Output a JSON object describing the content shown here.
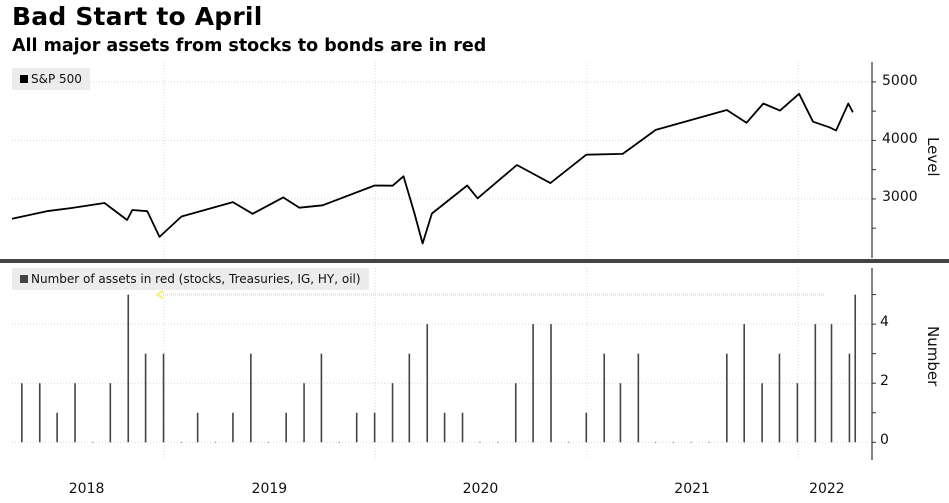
{
  "title": "Bad Start to April",
  "subtitle": "All major assets from stocks to bonds are in red",
  "chart_data": [
    {
      "type": "line",
      "legend": "S&P 500",
      "legend_placement": "top-left",
      "ylabel": "Level",
      "yticks": [
        3000,
        4000,
        5000
      ],
      "ylim": [
        1990,
        5340
      ],
      "xlim": [
        "2018-04-13",
        "2022-05-09"
      ],
      "grid": true,
      "color": "#000000",
      "series": [
        {
          "x": [
            "2018-04-13",
            "2018-06-12",
            "2018-07-25",
            "2018-09-20",
            "2018-10-29",
            "2018-11-07",
            "2018-12-03",
            "2018-12-24",
            "2019-01-31",
            "2019-04-30",
            "2019-06-03",
            "2019-07-26",
            "2019-08-23",
            "2019-10-02",
            "2019-12-31",
            "2020-01-31",
            "2020-02-19",
            "2020-03-09",
            "2020-03-23",
            "2020-04-08",
            "2020-06-08",
            "2020-06-26",
            "2020-09-02",
            "2020-10-30",
            "2020-12-31",
            "2021-03-04",
            "2021-04-30",
            "2021-08-31",
            "2021-10-04",
            "2021-11-02",
            "2021-12-01",
            "2022-01-03",
            "2022-01-27",
            "2022-02-24",
            "2022-03-08",
            "2022-03-29",
            "2022-04-06"
          ],
          "y": [
            2660,
            2790,
            2845,
            2930,
            2640,
            2810,
            2790,
            2350,
            2700,
            2945,
            2745,
            3025,
            2850,
            2890,
            3230,
            3225,
            3386,
            2750,
            2237,
            2750,
            3230,
            3010,
            3580,
            3270,
            3756,
            3770,
            4180,
            4520,
            4300,
            4630,
            4510,
            4796,
            4320,
            4225,
            4170,
            4630,
            4480
          ]
        }
      ]
    },
    {
      "type": "bar",
      "legend": "Number of assets in red (stocks, Treasuries, IG, HY, oil)",
      "legend_placement": "top-left",
      "ylabel": "Number",
      "yticks": [
        0,
        2,
        4
      ],
      "ylim": [
        -0.6,
        5.9
      ],
      "xlim": [
        "2018-04-13",
        "2022-05-09"
      ],
      "grid": true,
      "color": "#444444",
      "annotation": {
        "type": "arrow",
        "color": "#f5f07a",
        "y": 5,
        "from": "2022-02-15",
        "to": "2018-12-20"
      },
      "x": [
        "2018-04-30",
        "2018-05-31",
        "2018-06-30",
        "2018-07-31",
        "2018-08-31",
        "2018-09-30",
        "2018-10-31",
        "2018-11-30",
        "2018-12-31",
        "2019-01-31",
        "2019-02-28",
        "2019-03-31",
        "2019-04-30",
        "2019-05-31",
        "2019-06-30",
        "2019-07-31",
        "2019-08-31",
        "2019-09-30",
        "2019-10-31",
        "2019-11-30",
        "2019-12-31",
        "2020-01-31",
        "2020-02-29",
        "2020-03-31",
        "2020-04-30",
        "2020-05-31",
        "2020-06-30",
        "2020-07-31",
        "2020-08-31",
        "2020-09-30",
        "2020-10-31",
        "2020-11-30",
        "2020-12-31",
        "2021-01-31",
        "2021-02-28",
        "2021-03-31",
        "2021-04-30",
        "2021-05-31",
        "2021-06-30",
        "2021-07-31",
        "2021-08-31",
        "2021-09-30",
        "2021-10-31",
        "2021-11-30",
        "2021-12-31",
        "2022-01-31",
        "2022-02-28",
        "2022-03-31",
        "2022-04-10"
      ],
      "values": [
        2,
        2,
        1,
        2,
        0,
        2,
        5,
        3,
        3,
        0,
        1,
        0,
        1,
        3,
        0,
        1,
        2,
        3,
        0,
        1,
        1,
        2,
        3,
        4,
        1,
        1,
        0,
        0,
        2,
        4,
        4,
        0,
        1,
        3,
        2,
        3,
        0,
        0,
        0,
        0,
        3,
        4,
        2,
        3,
        2,
        4,
        4,
        3,
        5
      ]
    }
  ],
  "x_axis": {
    "labels": [
      {
        "text": "2018",
        "pos": "2018-08-20"
      },
      {
        "text": "2019",
        "pos": "2019-07-02"
      },
      {
        "text": "2020",
        "pos": "2020-07-01"
      },
      {
        "text": "2021",
        "pos": "2021-07-02"
      },
      {
        "text": "2022",
        "pos": "2022-02-20"
      }
    ],
    "gridlines": [
      "2019-01-01",
      "2020-01-01",
      "2021-01-01",
      "2022-01-01"
    ]
  }
}
